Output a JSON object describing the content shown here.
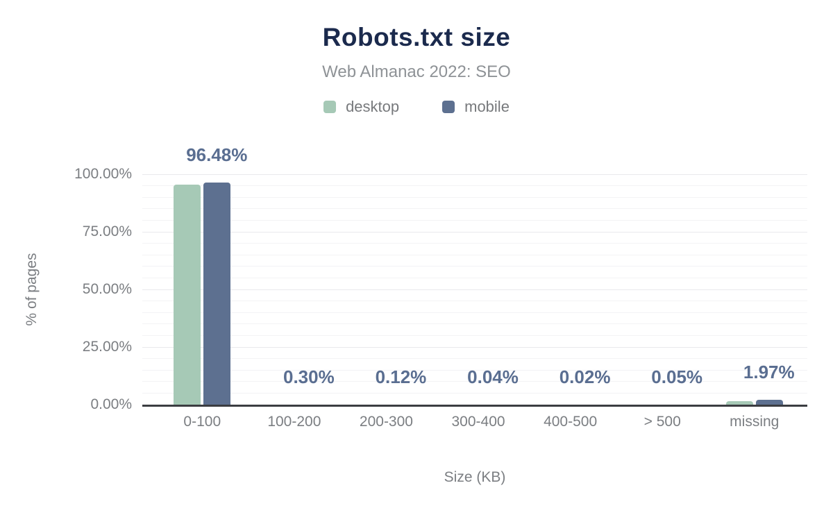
{
  "title": "Robots.txt size",
  "subtitle": "Web Almanac 2022: SEO",
  "legend": {
    "items": [
      {
        "name": "desktop",
        "color": "#a6c9b6"
      },
      {
        "name": "mobile",
        "color": "#5d7090"
      }
    ]
  },
  "colors": {
    "title": "#1b2a4d",
    "subtitle": "#8e9296",
    "axis_text": "#7b7e82",
    "data_label": "#5a6e91",
    "baseline": "#3b3d41",
    "grid_minor": "#f3f3f5",
    "grid_major": "#e9e9ec",
    "desktop_bar": "#a6c9b6",
    "mobile_bar": "#5d7090"
  },
  "chart_data": {
    "type": "bar",
    "title": "Robots.txt size",
    "subtitle": "Web Almanac 2022: SEO",
    "xlabel": "Size (KB)",
    "ylabel": "% of pages",
    "categories": [
      "0-100",
      "100-200",
      "200-300",
      "300-400",
      "400-500",
      "> 500",
      "missing"
    ],
    "series": [
      {
        "name": "desktop",
        "color": "#a6c9b6",
        "values": [
          95.6,
          0.3,
          0.12,
          0.04,
          0.02,
          0.05,
          1.6
        ]
      },
      {
        "name": "mobile",
        "color": "#5d7090",
        "values": [
          96.48,
          0.3,
          0.12,
          0.04,
          0.02,
          0.05,
          1.97
        ]
      }
    ],
    "data_labels": [
      "96.48%",
      "0.30%",
      "0.12%",
      "0.04%",
      "0.02%",
      "0.05%",
      "1.97%"
    ],
    "yticks": [
      {
        "label": "0.00%",
        "value": 0
      },
      {
        "label": "25.00%",
        "value": 25
      },
      {
        "label": "50.00%",
        "value": 50
      },
      {
        "label": "75.00%",
        "value": 75
      },
      {
        "label": "100.00%",
        "value": 100
      }
    ],
    "ylim": [
      0,
      100
    ],
    "grid": "horizontal, minor every 5%, major every 25%",
    "legend_position": "top"
  }
}
